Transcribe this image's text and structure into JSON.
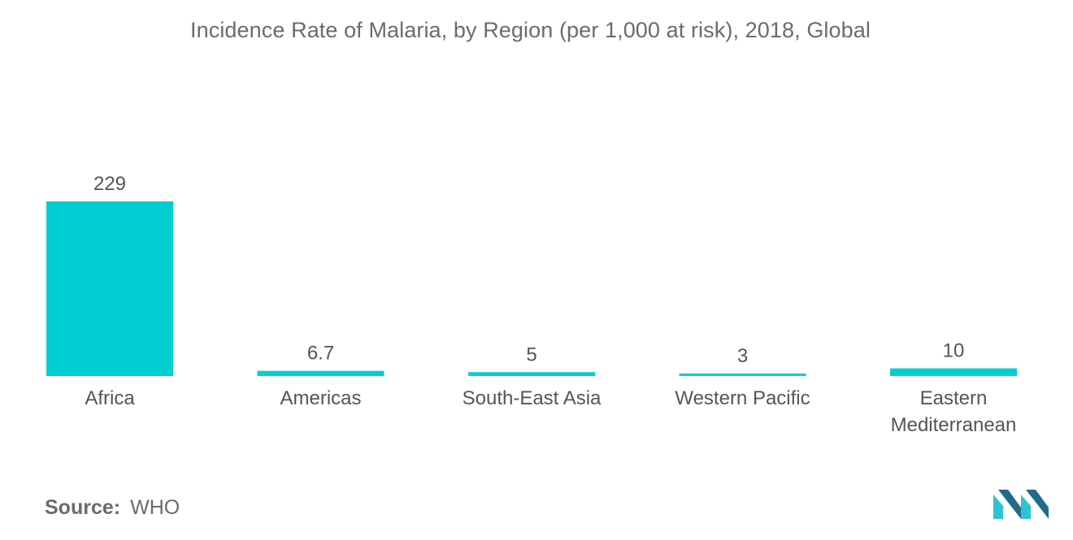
{
  "chart_data": {
    "type": "bar",
    "title": "Incidence Rate of Malaria, by Region (per 1,000 at risk), 2018, Global",
    "categories": [
      [
        "Africa"
      ],
      [
        "Americas"
      ],
      [
        "South-East Asia"
      ],
      [
        "Western Pacific"
      ],
      [
        "Eastern",
        "Mediterranean"
      ]
    ],
    "values": [
      229,
      6.7,
      5,
      3,
      10
    ],
    "value_labels": [
      "229",
      "6.7",
      "5",
      "3",
      "10"
    ],
    "xlabel": "",
    "ylabel": "",
    "ylim": [
      0,
      229
    ],
    "grid": false,
    "legend": "none"
  },
  "colors": {
    "bar": "#00CED1",
    "text": "#555555",
    "title": "#6b6b6b",
    "logo_dark": "#1f6b8a",
    "logo_light": "#2ec4d0"
  },
  "source": {
    "label": "Source:",
    "value": "WHO"
  },
  "logo": {
    "icon": "mordor-logo-icon"
  }
}
